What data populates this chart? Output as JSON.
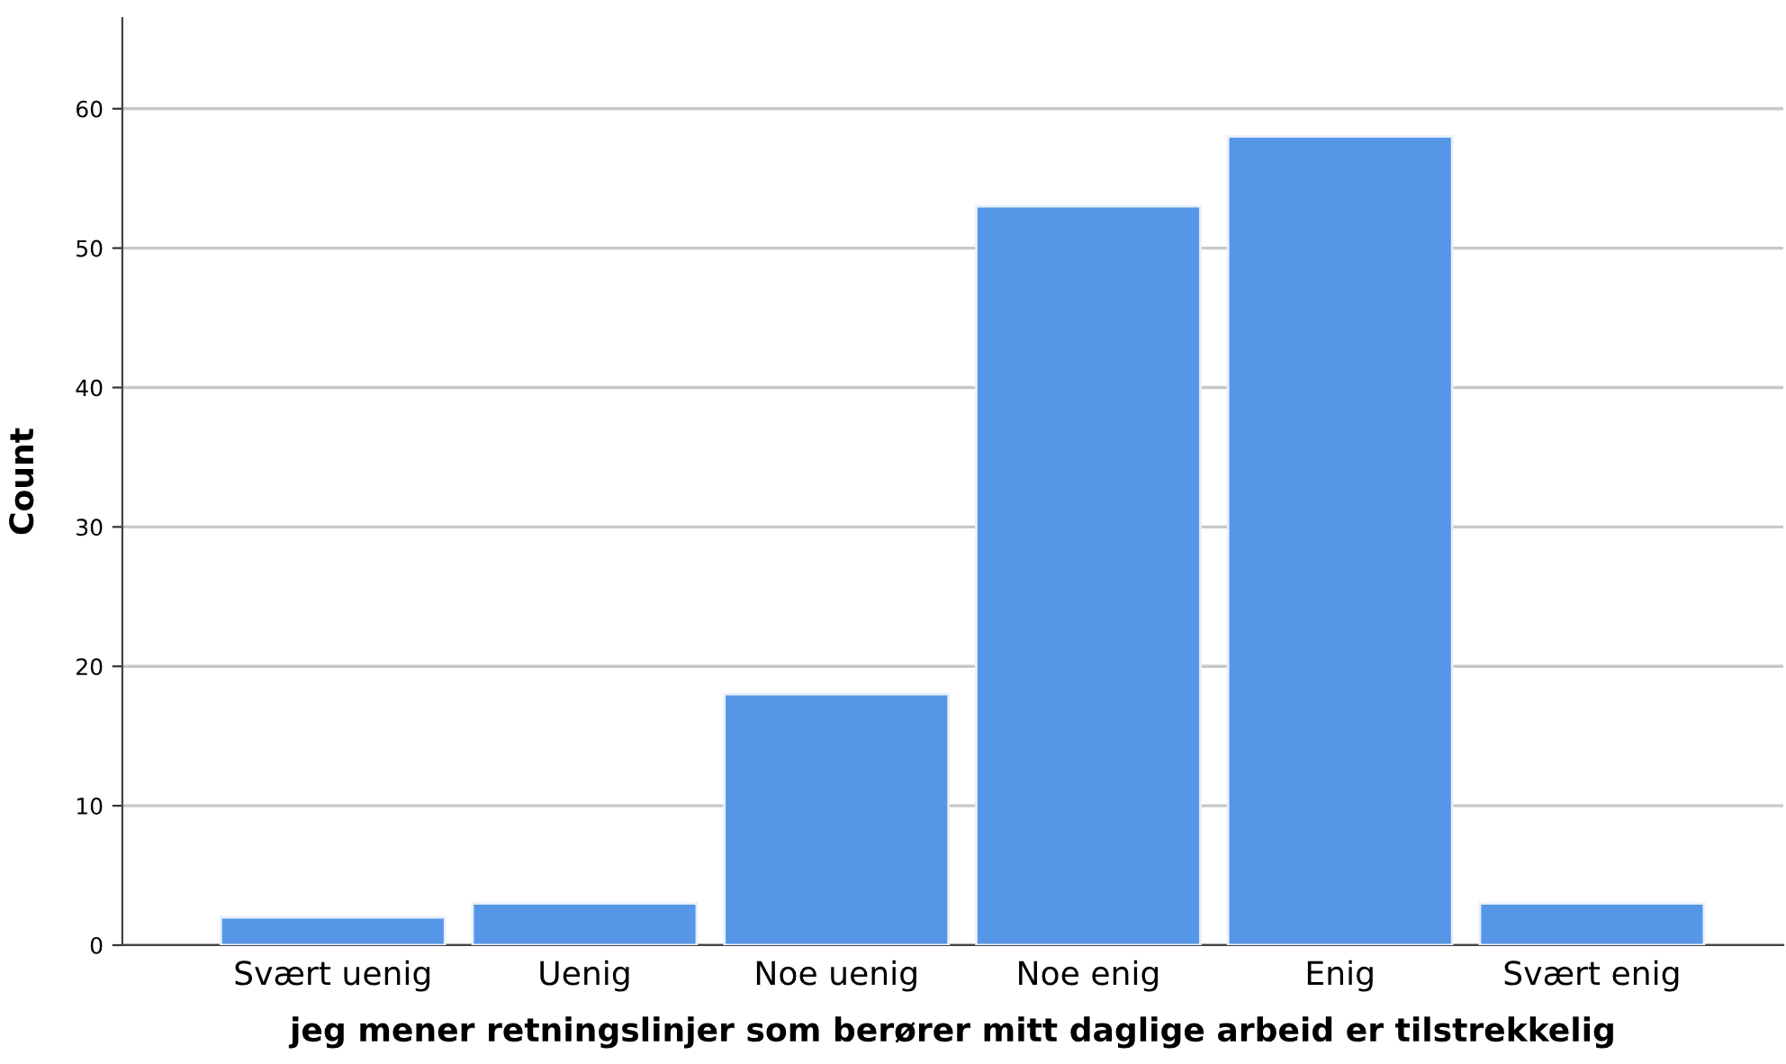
{
  "chart_data": {
    "type": "bar",
    "xlabel": "jeg mener retningslinjer som berører mitt daglige arbeid er tilstrekkelig",
    "ylabel": "Count",
    "categories": [
      "Svært uenig",
      "Uenig",
      "Noe uenig",
      "Noe enig",
      "Enig",
      "Svært enig"
    ],
    "values": [
      2,
      3,
      18,
      53,
      58,
      3
    ],
    "color": "#5596e6",
    "ylim": [
      0,
      66.5
    ],
    "yticks": [
      0,
      10,
      20,
      30,
      40,
      50,
      60
    ],
    "grid": "y"
  }
}
